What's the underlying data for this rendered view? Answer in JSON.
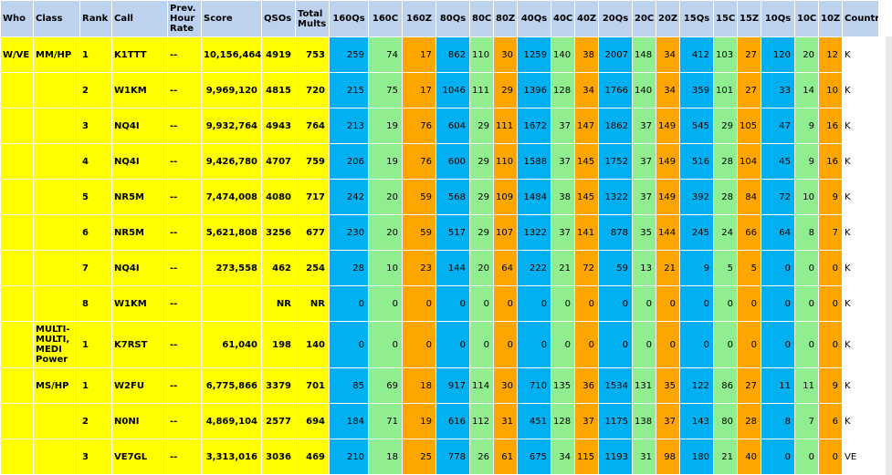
{
  "headers": [
    "Who",
    "Class",
    "Rank",
    "Call",
    "Prev. Hour Rate",
    "Score",
    "QSOs",
    "Total Mults",
    "160Qs",
    "160C",
    "160Z",
    "80Qs",
    "80C",
    "80Z",
    "40Qs",
    "40C",
    "40Z",
    "20Qs",
    "20C",
    "20Z",
    "15Qs",
    "15C",
    "15Z",
    "10Qs",
    "10C",
    "10Z",
    "Country"
  ],
  "rows": [
    {
      "who": "W/VE",
      "class": "MM/HP",
      "rank": "1",
      "call": "K1TTT",
      "rate": "--",
      "score": "10,156,464",
      "qsos": "4919",
      "mults": "753",
      "bands": [
        "259",
        "74",
        "17",
        "862",
        "110",
        "30",
        "1259",
        "140",
        "38",
        "2007",
        "148",
        "34",
        "412",
        "103",
        "27",
        "120",
        "20",
        "12"
      ],
      "country": "K"
    },
    {
      "who": "",
      "class": "",
      "rank": "2",
      "call": "W1KM",
      "rate": "--",
      "score": "9,969,120",
      "qsos": "4815",
      "mults": "720",
      "bands": [
        "215",
        "75",
        "17",
        "1046",
        "111",
        "29",
        "1396",
        "128",
        "34",
        "1766",
        "140",
        "34",
        "359",
        "101",
        "27",
        "33",
        "14",
        "10"
      ],
      "country": "K"
    },
    {
      "who": "",
      "class": "",
      "rank": "3",
      "call": "NQ4I",
      "rate": "--",
      "score": "9,932,764",
      "qsos": "4943",
      "mults": "764",
      "bands": [
        "213",
        "19",
        "76",
        "604",
        "29",
        "111",
        "1672",
        "37",
        "147",
        "1862",
        "37",
        "149",
        "545",
        "29",
        "105",
        "47",
        "9",
        "16"
      ],
      "country": "K"
    },
    {
      "who": "",
      "class": "",
      "rank": "4",
      "call": "NQ4I",
      "rate": "--",
      "score": "9,426,780",
      "qsos": "4707",
      "mults": "759",
      "bands": [
        "206",
        "19",
        "76",
        "600",
        "29",
        "110",
        "1588",
        "37",
        "145",
        "1752",
        "37",
        "149",
        "516",
        "28",
        "104",
        "45",
        "9",
        "16"
      ],
      "country": "K"
    },
    {
      "who": "",
      "class": "",
      "rank": "5",
      "call": "NR5M",
      "rate": "--",
      "score": "7,474,008",
      "qsos": "4080",
      "mults": "717",
      "bands": [
        "242",
        "20",
        "59",
        "568",
        "29",
        "109",
        "1484",
        "38",
        "145",
        "1322",
        "37",
        "149",
        "392",
        "28",
        "84",
        "72",
        "10",
        "9"
      ],
      "country": "K"
    },
    {
      "who": "",
      "class": "",
      "rank": "6",
      "call": "NR5M",
      "rate": "--",
      "score": "5,621,808",
      "qsos": "3256",
      "mults": "677",
      "bands": [
        "230",
        "20",
        "59",
        "517",
        "29",
        "107",
        "1322",
        "37",
        "141",
        "878",
        "35",
        "144",
        "245",
        "24",
        "66",
        "64",
        "8",
        "7"
      ],
      "country": "K"
    },
    {
      "who": "",
      "class": "",
      "rank": "7",
      "call": "NQ4I",
      "rate": "--",
      "score": "273,558",
      "qsos": "462",
      "mults": "254",
      "bands": [
        "28",
        "10",
        "23",
        "144",
        "20",
        "64",
        "222",
        "21",
        "72",
        "59",
        "13",
        "21",
        "9",
        "5",
        "5",
        "0",
        "0",
        "0"
      ],
      "country": "K"
    },
    {
      "who": "",
      "class": "",
      "rank": "8",
      "call": "W1KM",
      "rate": "--",
      "score": "",
      "qsos": "NR",
      "mults": "NR",
      "bands": [
        "0",
        "0",
        "0",
        "0",
        "0",
        "0",
        "0",
        "0",
        "0",
        "0",
        "0",
        "0",
        "0",
        "0",
        "0",
        "0",
        "0",
        "0"
      ],
      "country": "K"
    },
    {
      "who": "",
      "class": "MULTI-MULTI, MEDI Power",
      "rank": "1",
      "call": "K7RST",
      "rate": "--",
      "score": "61,040",
      "qsos": "198",
      "mults": "140",
      "bands": [
        "0",
        "0",
        "0",
        "0",
        "0",
        "0",
        "0",
        "0",
        "0",
        "0",
        "0",
        "0",
        "0",
        "0",
        "0",
        "0",
        "0",
        "0"
      ],
      "country": "K"
    },
    {
      "who": "",
      "class": "MS/HP",
      "rank": "1",
      "call": "W2FU",
      "rate": "--",
      "score": "6,775,866",
      "qsos": "3379",
      "mults": "701",
      "bands": [
        "85",
        "69",
        "18",
        "917",
        "114",
        "30",
        "710",
        "135",
        "36",
        "1534",
        "131",
        "35",
        "122",
        "86",
        "27",
        "11",
        "11",
        "9"
      ],
      "country": "K"
    },
    {
      "who": "",
      "class": "",
      "rank": "2",
      "call": "N0NI",
      "rate": "--",
      "score": "4,869,104",
      "qsos": "2577",
      "mults": "694",
      "bands": [
        "184",
        "71",
        "19",
        "616",
        "112",
        "31",
        "451",
        "128",
        "37",
        "1175",
        "138",
        "37",
        "143",
        "80",
        "28",
        "8",
        "7",
        "6"
      ],
      "country": "K"
    },
    {
      "who": "",
      "class": "",
      "rank": "3",
      "call": "VE7GL",
      "rate": "--",
      "score": "3,313,016",
      "qsos": "3036",
      "mults": "469",
      "bands": [
        "210",
        "18",
        "25",
        "778",
        "26",
        "61",
        "675",
        "34",
        "115",
        "1193",
        "31",
        "98",
        "180",
        "21",
        "40",
        "0",
        "0",
        "0"
      ],
      "country": "VE"
    }
  ],
  "colors": {
    "header": "#bcd2ee",
    "yellow": "#ffff00",
    "qs": "#00b0f0",
    "c": "#90ee90",
    "z": "#ffa500"
  }
}
